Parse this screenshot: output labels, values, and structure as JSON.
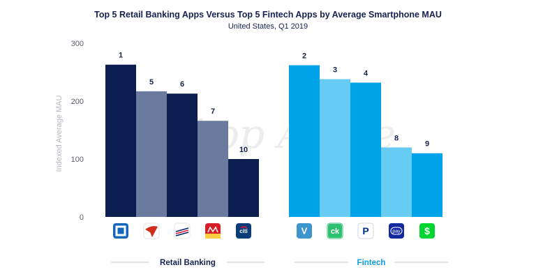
{
  "title": "Top 5 Retail Banking Apps Versus Top 5 Fintech Apps by Average Smartphone MAU",
  "subtitle": "United States, Q1 2019",
  "watermark": "App Annie",
  "colors": {
    "banking_dark": "#0b1e4f",
    "banking_light": "#6b7ba0",
    "fintech_dark": "#00a3e8",
    "fintech_light": "#66ccf4",
    "group_banking": "#15224f",
    "group_fintech": "#0a9ee0"
  },
  "chart_data": {
    "type": "bar",
    "title": "Top 5 Retail Banking Apps Versus Top 5 Fintech Apps by Average Smartphone MAU",
    "subtitle": "United States, Q1 2019",
    "ylabel": "Indexed Average MAU",
    "ylim": [
      0,
      300
    ],
    "yticks": [
      0,
      100,
      200,
      300
    ],
    "grid": false,
    "groups": [
      {
        "name": "Retail Banking",
        "bars": [
          {
            "icon": "chase-icon",
            "rank": "1",
            "value": 263,
            "shade": "dark"
          },
          {
            "icon": "capital-one-icon",
            "rank": "5",
            "value": 217,
            "shade": "light"
          },
          {
            "icon": "bank-of-america-icon",
            "rank": "6",
            "value": 213,
            "shade": "dark"
          },
          {
            "icon": "wells-fargo-icon",
            "rank": "7",
            "value": 166,
            "shade": "light"
          },
          {
            "icon": "citi-icon",
            "rank": "10",
            "value": 100,
            "shade": "dark"
          }
        ]
      },
      {
        "name": "Fintech",
        "bars": [
          {
            "icon": "venmo-icon",
            "rank": "2",
            "value": 262,
            "shade": "dark"
          },
          {
            "icon": "credit-karma-icon",
            "rank": "3",
            "value": 238,
            "shade": "light"
          },
          {
            "icon": "paypal-icon",
            "rank": "4",
            "value": 232,
            "shade": "dark"
          },
          {
            "icon": "samsung-pay-icon",
            "rank": "8",
            "value": 120,
            "shade": "light"
          },
          {
            "icon": "cash-app-icon",
            "rank": "9",
            "value": 110,
            "shade": "dark"
          }
        ]
      }
    ]
  },
  "icon_text": {
    "venmo": "V",
    "credit_karma": "ck",
    "paypal": "P",
    "samsung_pay": "pay",
    "citi": "citi",
    "cash_app": "$"
  }
}
